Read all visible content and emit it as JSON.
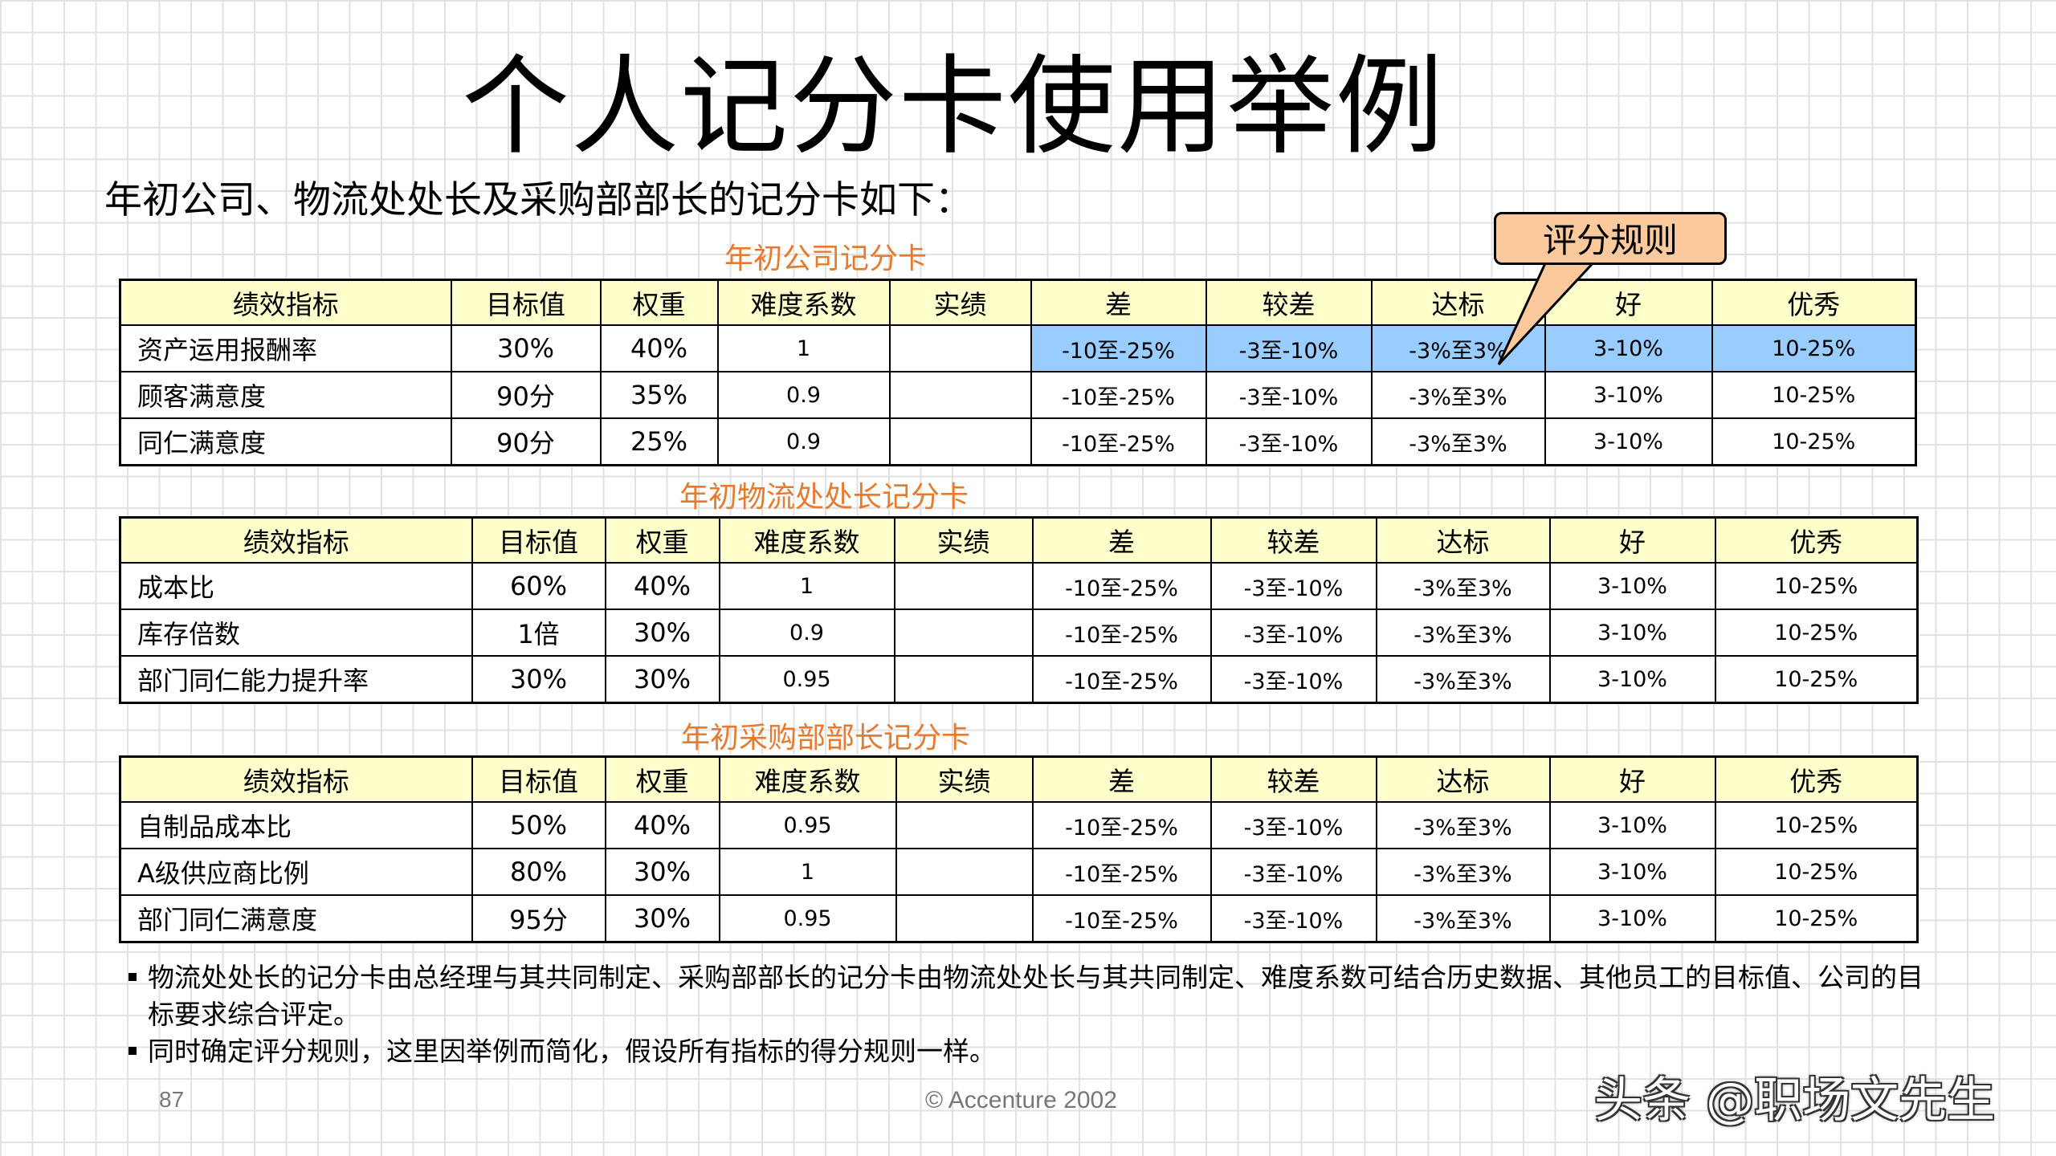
{
  "title": "个人记分卡使用举例",
  "subtitle": "年初公司、物流处处长及采购部部长的记分卡如下：",
  "callout": "评分规则",
  "tables": [
    {
      "caption": "年初公司记分卡",
      "headers": [
        "绩效指标",
        "目标值",
        "权重",
        "难度系数",
        "实绩",
        "差",
        "较差",
        "达标",
        "好",
        "优秀"
      ],
      "rows": [
        [
          "资产运用报酬率",
          "30%",
          "40%",
          "1",
          "",
          "-10至-25%",
          "-3至-10%",
          "-3%至3%",
          "3-10%",
          "10-25%"
        ],
        [
          "顾客满意度",
          "90分",
          "35%",
          "0.9",
          "",
          "-10至-25%",
          "-3至-10%",
          "-3%至3%",
          "3-10%",
          "10-25%"
        ],
        [
          "同仁满意度",
          "90分",
          "25%",
          "0.9",
          "",
          "-10至-25%",
          "-3至-10%",
          "-3%至3%",
          "3-10%",
          "10-25%"
        ]
      ]
    },
    {
      "caption": "年初物流处处长记分卡",
      "headers": [
        "绩效指标",
        "目标值",
        "权重",
        "难度系数",
        "实绩",
        "差",
        "较差",
        "达标",
        "好",
        "优秀"
      ],
      "rows": [
        [
          "成本比",
          "60%",
          "40%",
          "1",
          "",
          "-10至-25%",
          "-3至-10%",
          "-3%至3%",
          "3-10%",
          "10-25%"
        ],
        [
          "库存倍数",
          "1倍",
          "30%",
          "0.9",
          "",
          "-10至-25%",
          "-3至-10%",
          "-3%至3%",
          "3-10%",
          "10-25%"
        ],
        [
          "部门同仁能力提升率",
          "30%",
          "30%",
          "0.95",
          "",
          "-10至-25%",
          "-3至-10%",
          "-3%至3%",
          "3-10%",
          "10-25%"
        ]
      ]
    },
    {
      "caption": "年初采购部部长记分卡",
      "headers": [
        "绩效指标",
        "目标值",
        "权重",
        "难度系数",
        "实绩",
        "差",
        "较差",
        "达标",
        "好",
        "优秀"
      ],
      "rows": [
        [
          "自制品成本比",
          "50%",
          "40%",
          "0.95",
          "",
          "-10至-25%",
          "-3至-10%",
          "-3%至3%",
          "3-10%",
          "10-25%"
        ],
        [
          "A级供应商比例",
          "80%",
          "30%",
          "1",
          "",
          "-10至-25%",
          "-3至-10%",
          "-3%至3%",
          "3-10%",
          "10-25%"
        ],
        [
          "部门同仁满意度",
          "95分",
          "30%",
          "0.95",
          "",
          "-10至-25%",
          "-3至-10%",
          "-3%至3%",
          "3-10%",
          "10-25%"
        ]
      ]
    }
  ],
  "bullets": [
    "物流处处长的记分卡由总经理与其共同制定、采购部部长的记分卡由物流处处长与其共同制定、难度系数可结合历史数据、其他员工的目标值、公司的目标要求综合评定。",
    "同时确定评分规则，这里因举例而简化，假设所有指标的得分规则一样。"
  ],
  "footer": {
    "page_number": "87",
    "copyright": "© Accenture 2002"
  },
  "watermark": "头条 @职场文先生",
  "colors": {
    "header_fill": "#ffffcc",
    "highlight_fill": "#99ccff",
    "caption_text": "#e87a2e",
    "callout_fill": "#fbc99b"
  }
}
